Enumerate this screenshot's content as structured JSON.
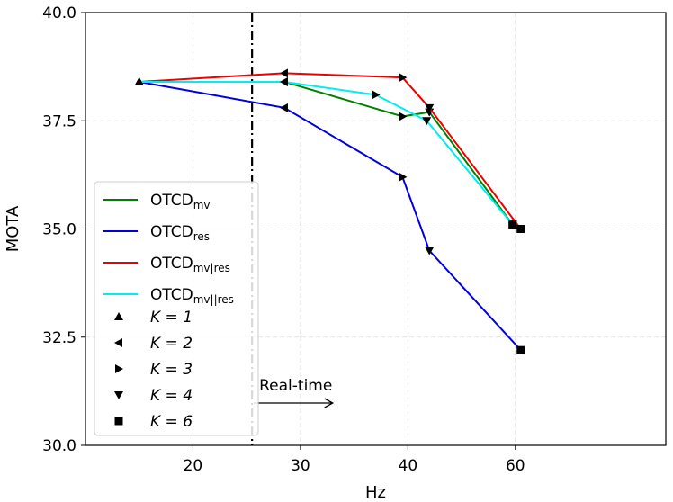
{
  "chart_data": {
    "type": "line",
    "xlabel": "Hz",
    "ylabel": "MOTA",
    "ylim": [
      30.0,
      40.0
    ],
    "xticks": [
      20,
      30,
      40,
      60
    ],
    "yticks": [
      "30.0",
      "32.5",
      "35.0",
      "37.5",
      "40.0"
    ],
    "grid": true,
    "legend_position": "center-left",
    "series": [
      {
        "name": "OTCD",
        "sub": "mv",
        "color": "#008000",
        "points": [
          {
            "x": 15,
            "y": 38.4,
            "k": 1
          },
          {
            "x": 28.5,
            "y": 38.4,
            "k": 2
          },
          {
            "x": 39.5,
            "y": 37.6,
            "k": 3
          },
          {
            "x": 44,
            "y": 37.7,
            "k": 4
          },
          {
            "x": 59.5,
            "y": 35.1,
            "k": 6
          }
        ]
      },
      {
        "name": "OTCD",
        "sub": "res",
        "color": "#0000dd",
        "points": [
          {
            "x": 15,
            "y": 38.4,
            "k": 1
          },
          {
            "x": 28.5,
            "y": 37.8,
            "k": 2
          },
          {
            "x": 39.5,
            "y": 36.2,
            "k": 3
          },
          {
            "x": 44,
            "y": 34.5,
            "k": 4
          },
          {
            "x": 61,
            "y": 32.2,
            "k": 6
          }
        ]
      },
      {
        "name": "OTCD",
        "sub": "mv|res",
        "color": "#ee0000",
        "points": [
          {
            "x": 15,
            "y": 38.4,
            "k": 1
          },
          {
            "x": 28.5,
            "y": 38.6,
            "k": 2
          },
          {
            "x": 39.5,
            "y": 38.5,
            "k": 3
          },
          {
            "x": 44,
            "y": 37.8,
            "k": 4
          },
          {
            "x": 61,
            "y": 35.0,
            "k": 6
          }
        ]
      },
      {
        "name": "OTCD",
        "sub": "mv||res",
        "color": "#00eeee",
        "points": [
          {
            "x": 15,
            "y": 38.4,
            "k": 1
          },
          {
            "x": 28.5,
            "y": 38.4,
            "k": 2
          },
          {
            "x": 37,
            "y": 38.1,
            "k": 3
          },
          {
            "x": 43.5,
            "y": 37.5,
            "k": 4
          },
          {
            "x": 59.5,
            "y": 35.1,
            "k": 6
          }
        ]
      }
    ],
    "markers_legend": [
      {
        "k": 1,
        "label": "K = 1"
      },
      {
        "k": 2,
        "label": "K = 2"
      },
      {
        "k": 3,
        "label": "K = 3"
      },
      {
        "k": 4,
        "label": "K = 4"
      },
      {
        "k": 6,
        "label": "K = 6"
      }
    ],
    "vline": {
      "x": 25.5
    },
    "annotation": {
      "text": "Real-time"
    }
  }
}
